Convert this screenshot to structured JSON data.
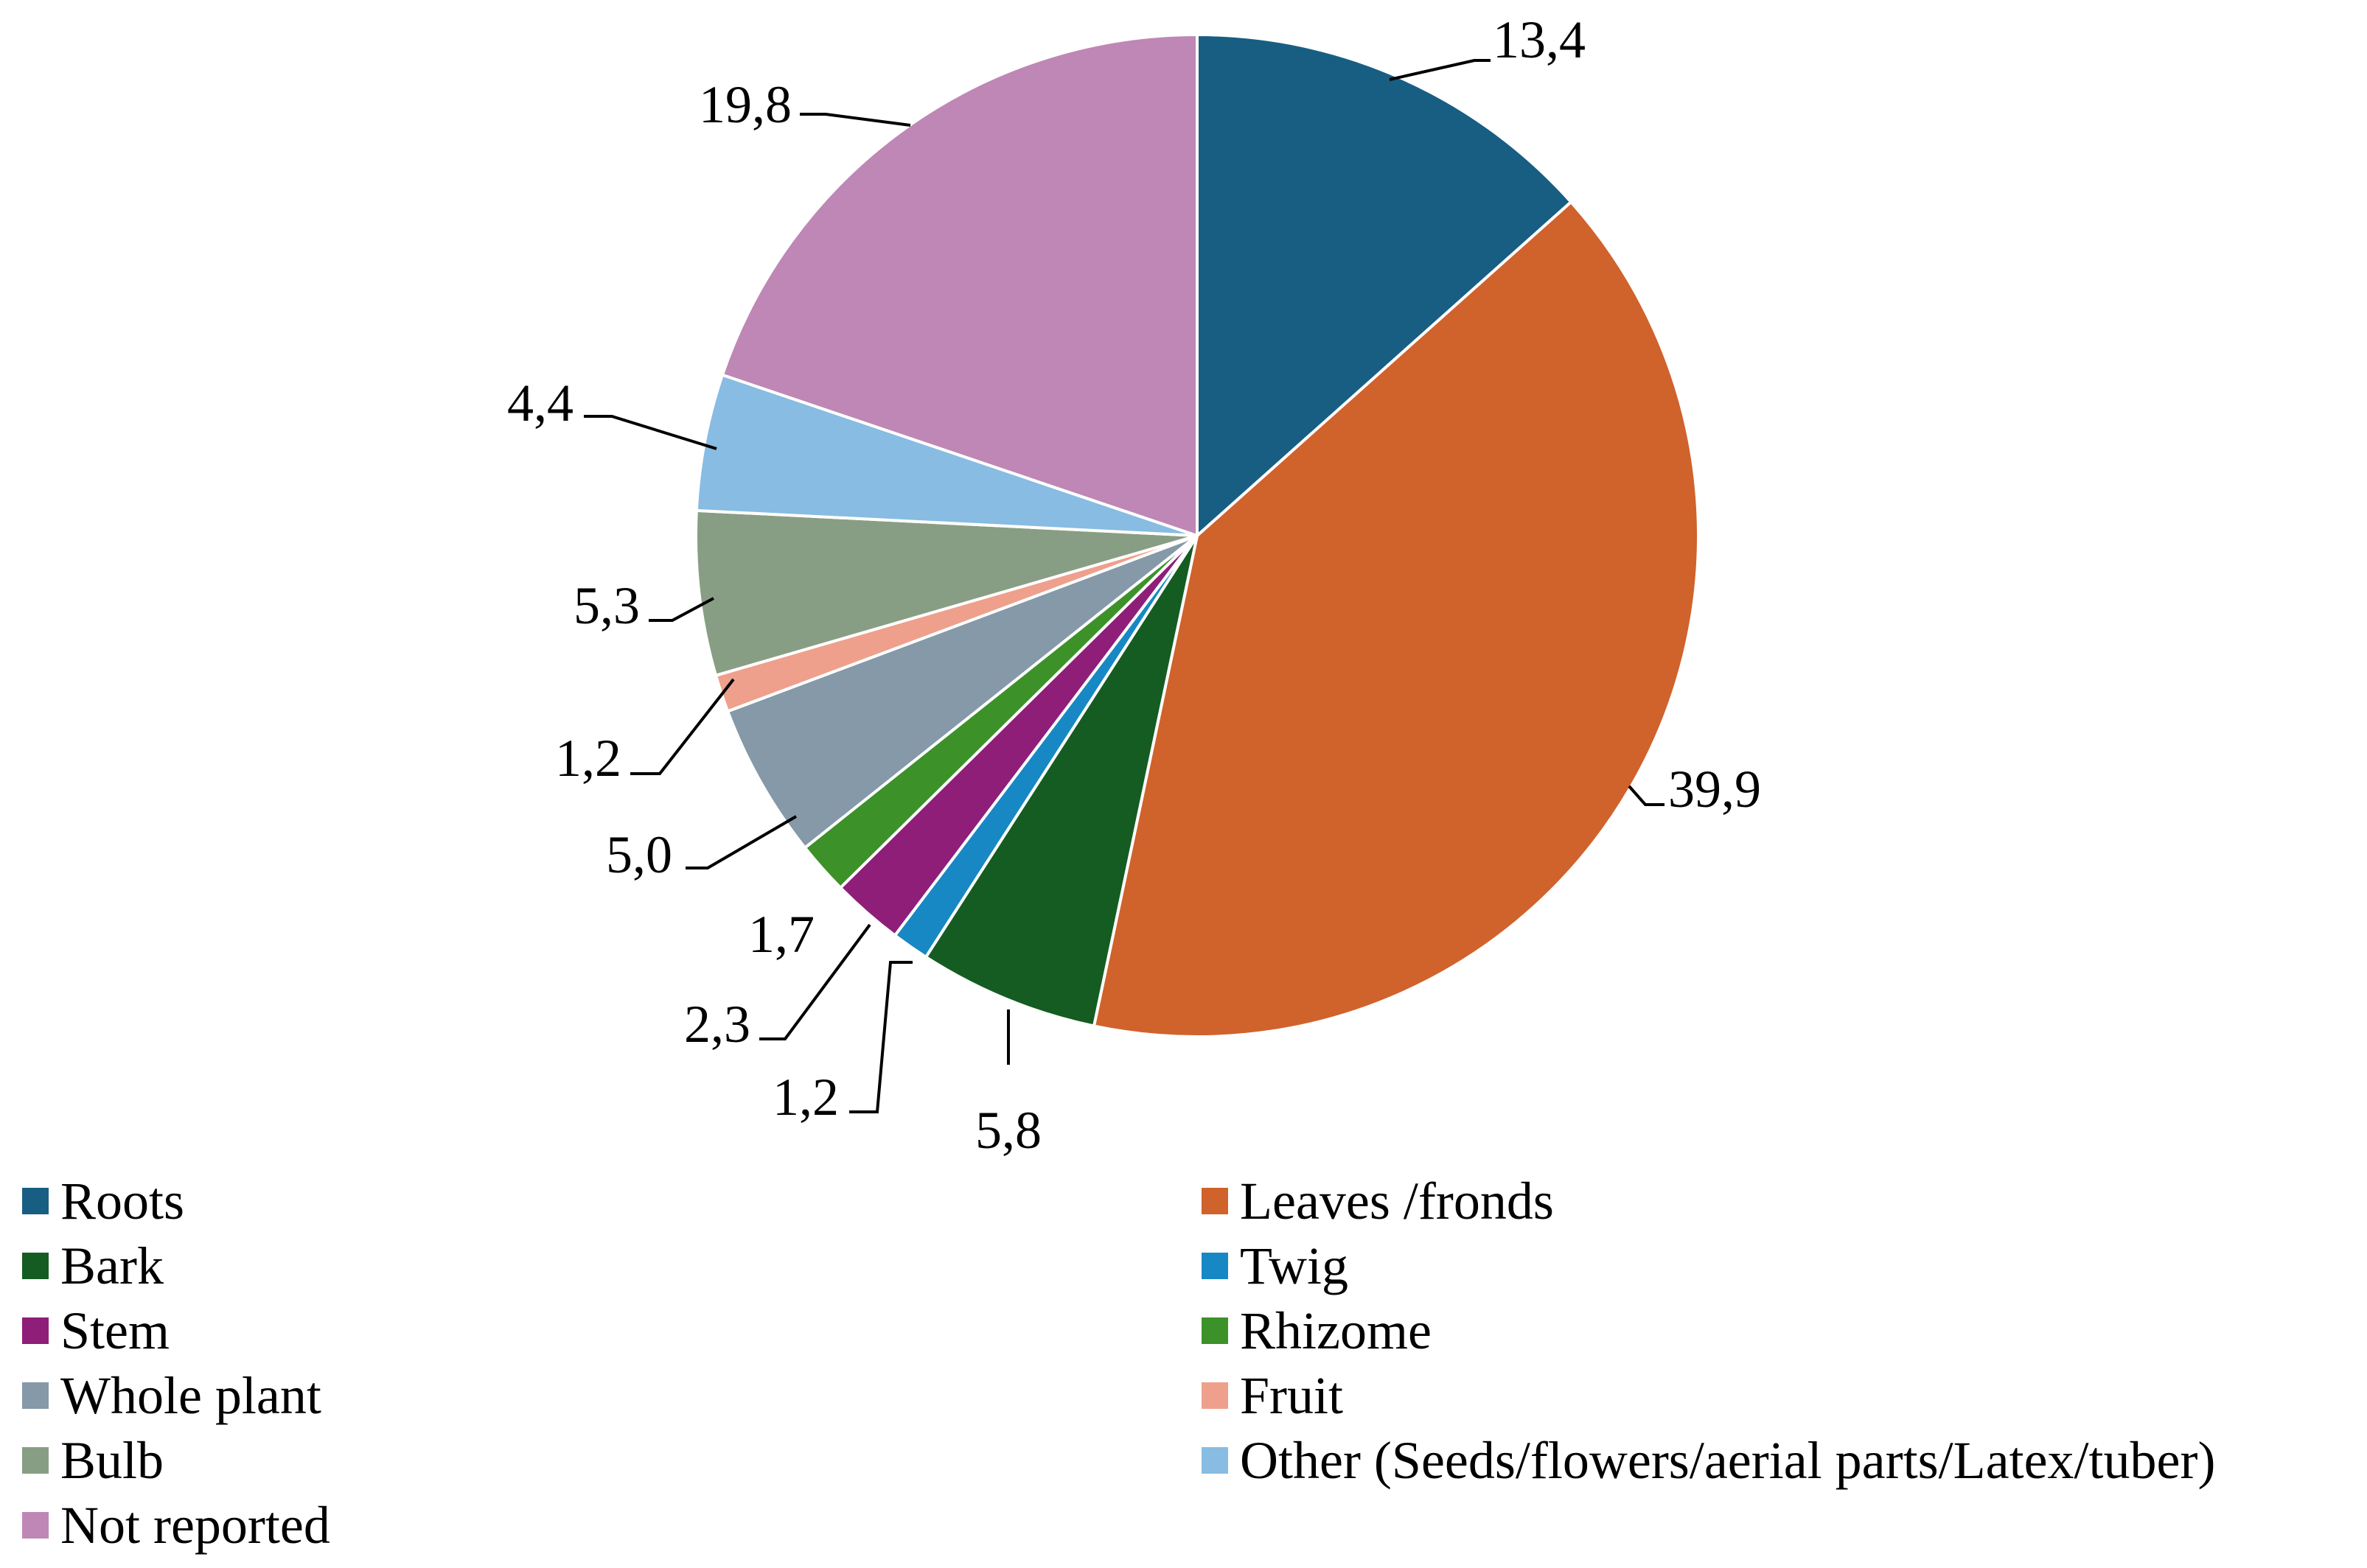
{
  "chart_data": {
    "type": "pie",
    "start_angle_deg": 0,
    "direction": "clockwise",
    "legend_position": "bottom",
    "legend_columns": 2,
    "slices": [
      {
        "label": "Roots",
        "value": 13.4,
        "value_label": "13,4",
        "color": "#175E82"
      },
      {
        "label": "Leaves /fronds",
        "value": 39.9,
        "value_label": "39,9",
        "color": "#D0622C"
      },
      {
        "label": "Bark",
        "value": 5.8,
        "value_label": "5,8",
        "color": "#155C22"
      },
      {
        "label": " Twig",
        "value": 1.2,
        "value_label": "1,2",
        "color": "#1788C4"
      },
      {
        "label": "Stem",
        "value": 2.3,
        "value_label": "2,3",
        "color": "#8E1E78"
      },
      {
        "label": "Rhizome",
        "value": 1.7,
        "value_label": "1,7",
        "color": "#3C9229"
      },
      {
        "label": "Whole plant",
        "value": 5.0,
        "value_label": "5,0",
        "color": "#8599A8"
      },
      {
        "label": "Fruit",
        "value": 1.2,
        "value_label": "1,2",
        "color": "#EEA08C"
      },
      {
        "label": "Bulb",
        "value": 5.3,
        "value_label": "5,3",
        "color": "#889E84"
      },
      {
        "label": "Other (Seeds/flowers/aerial parts/Latex/tuber)",
        "value": 4.4,
        "value_label": "4,4",
        "color": "#88BCE2"
      },
      {
        "label": "Not reported",
        "value": 19.8,
        "value_label": "19,8",
        "color": "#BE87B5"
      }
    ]
  }
}
